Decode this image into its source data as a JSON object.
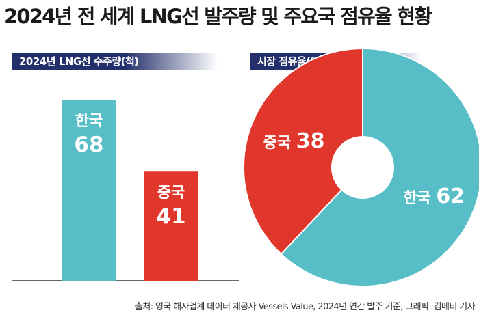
{
  "title": "2024년 전 세계 LNG선 발주량 및 주요국 점유율 현황",
  "source": "출처: 영국 해사업계 데이터 제공사 Vessels Value, 2024년 연간 발주 기준, 그래픽: 김베티 기자",
  "colors": {
    "korea": "#57bec7",
    "china": "#e0362b",
    "header": "#24306b"
  },
  "chart_data": [
    {
      "type": "bar",
      "title": "2024년 LNG선 수주량(척)",
      "categories": [
        "한국",
        "중국"
      ],
      "values": [
        68,
        41
      ],
      "ylim": [
        0,
        68
      ],
      "grid": false
    },
    {
      "type": "pie",
      "title": "시장 점유율(%)",
      "labels": [
        "한국",
        "중국"
      ],
      "values": [
        62,
        38
      ],
      "donut": true
    }
  ]
}
